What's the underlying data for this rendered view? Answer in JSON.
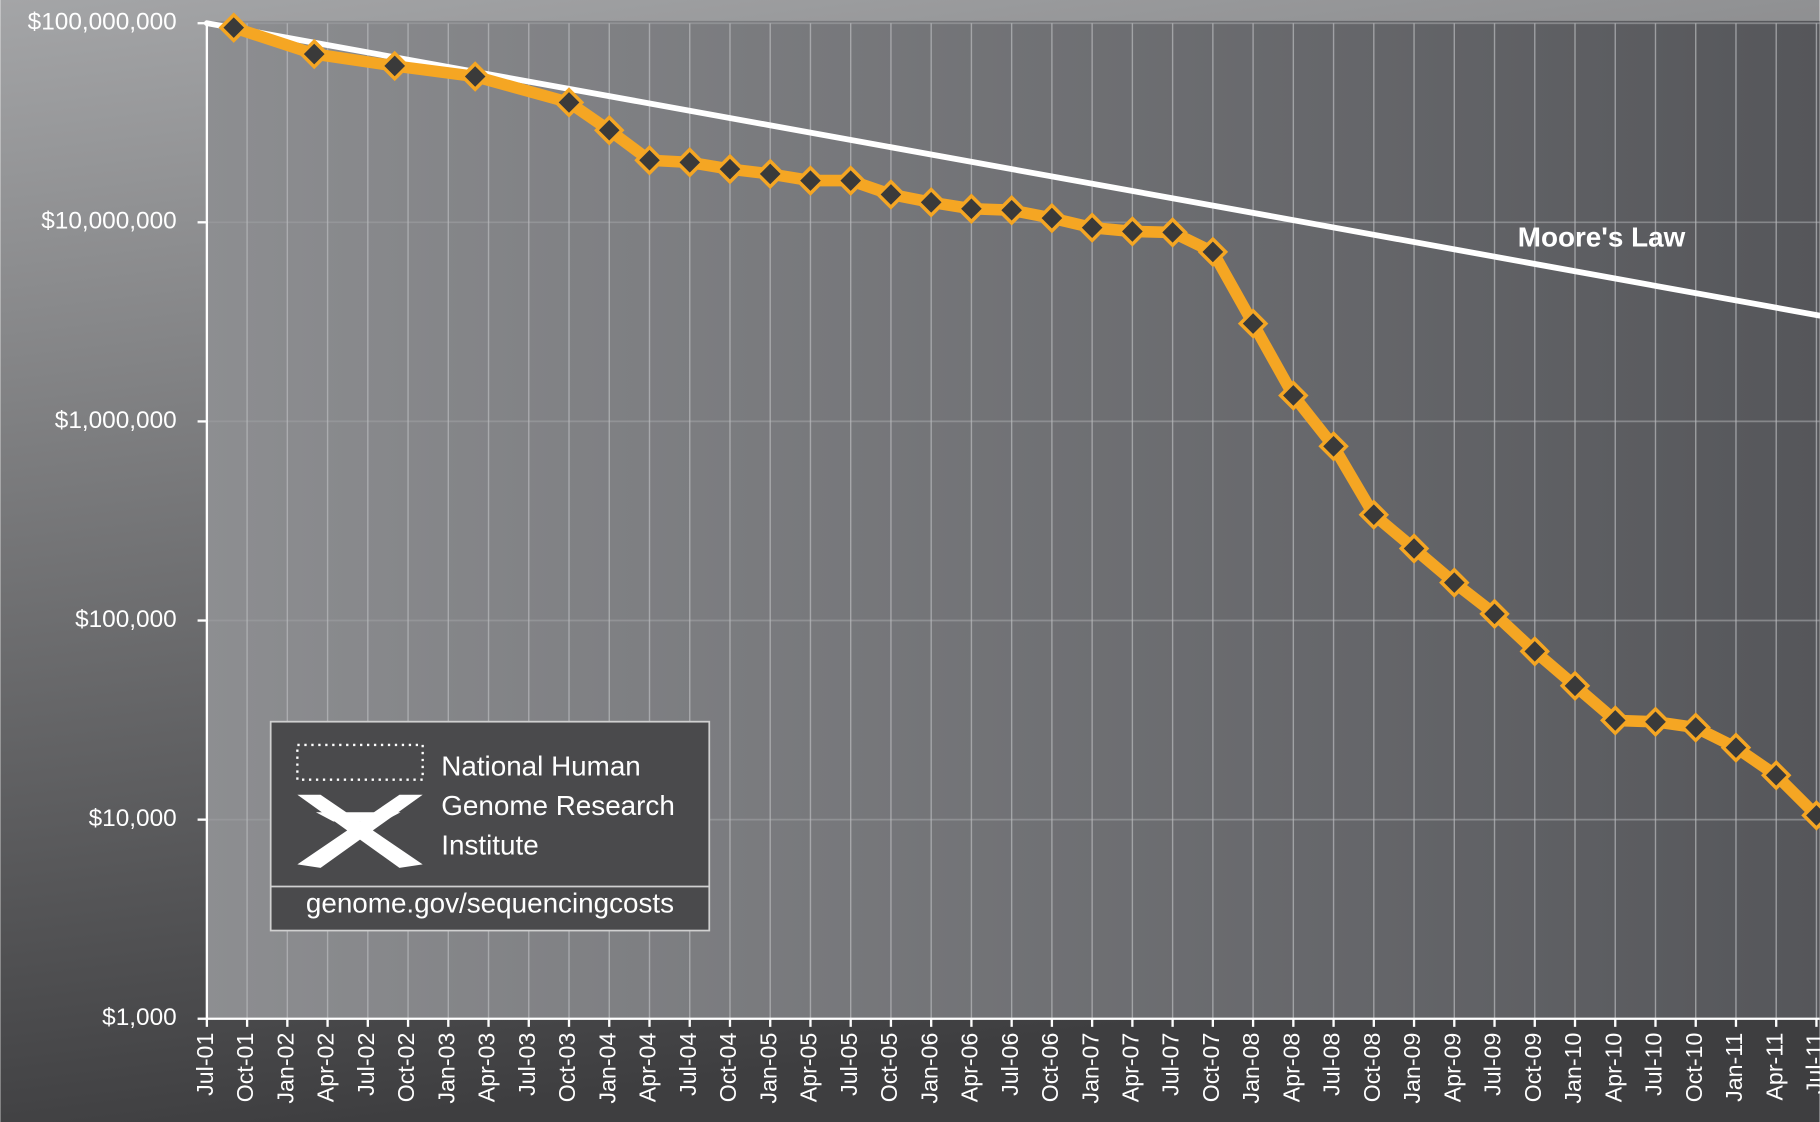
{
  "chart_data": {
    "type": "line",
    "log_y": true,
    "grid": true,
    "xlim": [
      2001.5,
      2011.52
    ],
    "ylim": [
      1000,
      100000000
    ],
    "yticks": [
      {
        "value": 1000,
        "label": "$1,000"
      },
      {
        "value": 10000,
        "label": "$10,000"
      },
      {
        "value": 100000,
        "label": "$100,000"
      },
      {
        "value": 1000000,
        "label": "$1,000,000"
      },
      {
        "value": 10000000,
        "label": "$10,000,000"
      },
      {
        "value": 100000000,
        "label": "$100,000,000"
      }
    ],
    "xticks": [
      {
        "value": 2001.5,
        "label": "Jul-01"
      },
      {
        "value": 2001.75,
        "label": "Oct-01"
      },
      {
        "value": 2002,
        "label": "Jan-02"
      },
      {
        "value": 2002.25,
        "label": "Apr-02"
      },
      {
        "value": 2002.5,
        "label": "Jul-02"
      },
      {
        "value": 2002.75,
        "label": "Oct-02"
      },
      {
        "value": 2003,
        "label": "Jan-03"
      },
      {
        "value": 2003.25,
        "label": "Apr-03"
      },
      {
        "value": 2003.5,
        "label": "Jul-03"
      },
      {
        "value": 2003.75,
        "label": "Oct-03"
      },
      {
        "value": 2004,
        "label": "Jan-04"
      },
      {
        "value": 2004.25,
        "label": "Apr-04"
      },
      {
        "value": 2004.5,
        "label": "Jul-04"
      },
      {
        "value": 2004.75,
        "label": "Oct-04"
      },
      {
        "value": 2005,
        "label": "Jan-05"
      },
      {
        "value": 2005.25,
        "label": "Apr-05"
      },
      {
        "value": 2005.5,
        "label": "Jul-05"
      },
      {
        "value": 2005.75,
        "label": "Oct-05"
      },
      {
        "value": 2006,
        "label": "Jan-06"
      },
      {
        "value": 2006.25,
        "label": "Apr-06"
      },
      {
        "value": 2006.5,
        "label": "Jul-06"
      },
      {
        "value": 2006.75,
        "label": "Oct-06"
      },
      {
        "value": 2007,
        "label": "Jan-07"
      },
      {
        "value": 2007.25,
        "label": "Apr-07"
      },
      {
        "value": 2007.5,
        "label": "Jul-07"
      },
      {
        "value": 2007.75,
        "label": "Oct-07"
      },
      {
        "value": 2008,
        "label": "Jan-08"
      },
      {
        "value": 2008.25,
        "label": "Apr-08"
      },
      {
        "value": 2008.5,
        "label": "Jul-08"
      },
      {
        "value": 2008.75,
        "label": "Oct-08"
      },
      {
        "value": 2009,
        "label": "Jan-09"
      },
      {
        "value": 2009.25,
        "label": "Apr-09"
      },
      {
        "value": 2009.5,
        "label": "Jul-09"
      },
      {
        "value": 2009.75,
        "label": "Oct-09"
      },
      {
        "value": 2010,
        "label": "Jan-10"
      },
      {
        "value": 2010.25,
        "label": "Apr-10"
      },
      {
        "value": 2010.5,
        "label": "Jul-10"
      },
      {
        "value": 2010.75,
        "label": "Oct-10"
      },
      {
        "value": 2011,
        "label": "Jan-11"
      },
      {
        "value": 2011.25,
        "label": "Apr-11"
      },
      {
        "value": 2011.5,
        "label": "Jul-11"
      }
    ],
    "series": [
      {
        "color": "#f5a623",
        "x": [
          2001.667,
          2002.167,
          2002.667,
          2003.167,
          2003.75,
          2004,
          2004.25,
          2004.5,
          2004.75,
          2005,
          2005.25,
          2005.5,
          2005.75,
          2006,
          2006.25,
          2006.5,
          2006.75,
          2007,
          2007.25,
          2007.5,
          2007.75,
          2008,
          2008.25,
          2008.5,
          2008.75,
          2009,
          2009.25,
          2009.5,
          2009.75,
          2010,
          2010.25,
          2010.5,
          2010.75,
          2011,
          2011.25,
          2011.5
        ],
        "values": [
          95000000,
          70000000,
          61000000,
          54000000,
          40000000,
          29000000,
          20500000,
          20000000,
          18500000,
          17500000,
          16200000,
          16200000,
          13800000,
          12600000,
          11700000,
          11500000,
          10500000,
          9400000,
          9000000,
          8900000,
          7100000,
          3100000,
          1350000,
          750000,
          340000,
          230000,
          155000,
          108000,
          70000,
          47000,
          31500,
          31000,
          29000,
          23000,
          16700,
          10500
        ]
      },
      {
        "name": "Moore's Law",
        "color": "#ffffff",
        "x": [
          2001.5,
          2011.52
        ],
        "values": [
          100000000,
          3400000
        ]
      }
    ],
    "annotations": [
      "National Human",
      "Genome Research",
      "Institute",
      "genome.gov/sequencingcosts"
    ]
  }
}
